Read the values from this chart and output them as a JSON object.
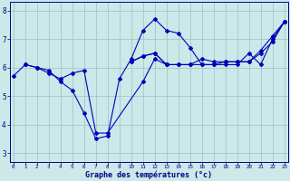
{
  "title": "",
  "xlabel": "Graphe des températures (°c)",
  "ylabel": "",
  "background_color": "#cce8e8",
  "line_color": "#0000bb",
  "grid_color": "#99cccc",
  "ylim": [
    2.7,
    8.3
  ],
  "xlim": [
    -0.3,
    23.3
  ],
  "yticks": [
    3,
    4,
    5,
    6,
    7,
    8
  ],
  "xticks": [
    0,
    1,
    2,
    3,
    4,
    5,
    6,
    7,
    8,
    9,
    10,
    11,
    12,
    13,
    14,
    15,
    16,
    17,
    18,
    19,
    20,
    21,
    22,
    23
  ],
  "series": [
    [
      5.7,
      6.1,
      6.0,
      5.9,
      5.5,
      5.2,
      4.4,
      3.5,
      3.6,
      5.6,
      6.3,
      7.3,
      7.7,
      7.3,
      7.2,
      6.7,
      6.1,
      6.1,
      6.1,
      6.1,
      6.5,
      6.1,
      7.0,
      7.6
    ],
    [
      null,
      6.1,
      6.0,
      5.8,
      5.6,
      5.8,
      5.9,
      3.7,
      3.7,
      null,
      null,
      5.5,
      6.3,
      6.1,
      null,
      null,
      null,
      null,
      null,
      null,
      null,
      null,
      null,
      null
    ],
    [
      null,
      null,
      null,
      null,
      null,
      null,
      null,
      null,
      null,
      null,
      6.2,
      6.4,
      6.5,
      6.1,
      6.1,
      6.1,
      6.1,
      6.1,
      6.2,
      6.2,
      6.2,
      6.5,
      6.9,
      7.6
    ],
    [
      null,
      null,
      null,
      null,
      null,
      null,
      null,
      null,
      null,
      null,
      6.2,
      6.4,
      6.5,
      6.1,
      6.1,
      6.1,
      6.3,
      6.2,
      6.2,
      6.2,
      6.2,
      6.6,
      7.1,
      7.6
    ]
  ]
}
